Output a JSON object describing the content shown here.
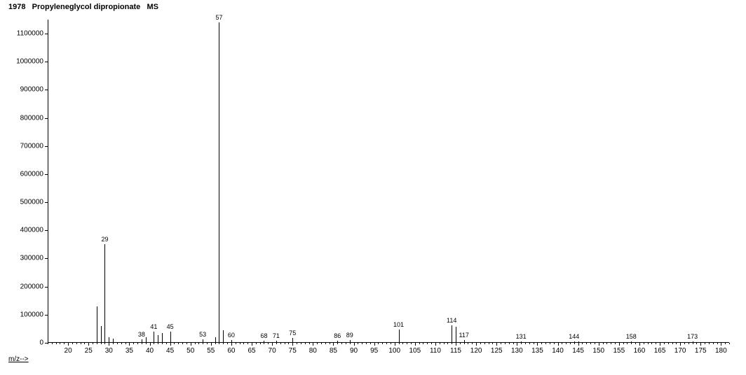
{
  "title": "1978   Propyleneglycol dipropionate   MS",
  "chart": {
    "type": "bar",
    "background_color": "#ffffff",
    "line_color": "#000000",
    "font_size_axis": 10,
    "font_size_peak": 9,
    "x": {
      "min": 15,
      "max": 182,
      "tick_start": 20,
      "tick_step": 5,
      "minor_step": 1,
      "title": "m/z-->"
    },
    "y": {
      "min": 0,
      "max": 1150000,
      "tick_start": 0,
      "tick_step": 100000
    },
    "peaks": [
      {
        "mz": 27,
        "intensity": 130000,
        "label": ""
      },
      {
        "mz": 28,
        "intensity": 60000,
        "label": ""
      },
      {
        "mz": 29,
        "intensity": 350000,
        "label": "29"
      },
      {
        "mz": 30,
        "intensity": 20000,
        "label": ""
      },
      {
        "mz": 31,
        "intensity": 15000,
        "label": ""
      },
      {
        "mz": 38,
        "intensity": 12000,
        "label": "38"
      },
      {
        "mz": 39,
        "intensity": 20000,
        "label": ""
      },
      {
        "mz": 41,
        "intensity": 40000,
        "label": "41"
      },
      {
        "mz": 42,
        "intensity": 28000,
        "label": ""
      },
      {
        "mz": 43,
        "intensity": 35000,
        "label": ""
      },
      {
        "mz": 45,
        "intensity": 40000,
        "label": "45"
      },
      {
        "mz": 53,
        "intensity": 12000,
        "label": "53"
      },
      {
        "mz": 56,
        "intensity": 20000,
        "label": ""
      },
      {
        "mz": 57,
        "intensity": 1140000,
        "label": "57"
      },
      {
        "mz": 58,
        "intensity": 45000,
        "label": ""
      },
      {
        "mz": 60,
        "intensity": 10000,
        "label": "60"
      },
      {
        "mz": 68,
        "intensity": 8000,
        "label": "68"
      },
      {
        "mz": 71,
        "intensity": 8000,
        "label": "71"
      },
      {
        "mz": 75,
        "intensity": 18000,
        "label": "75"
      },
      {
        "mz": 86,
        "intensity": 8000,
        "label": "86"
      },
      {
        "mz": 89,
        "intensity": 10000,
        "label": "89"
      },
      {
        "mz": 101,
        "intensity": 48000,
        "label": "101"
      },
      {
        "mz": 114,
        "intensity": 62000,
        "label": "114"
      },
      {
        "mz": 115,
        "intensity": 58000,
        "label": ""
      },
      {
        "mz": 117,
        "intensity": 10000,
        "label": "117"
      },
      {
        "mz": 131,
        "intensity": 6000,
        "label": "131"
      },
      {
        "mz": 144,
        "intensity": 6000,
        "label": "144"
      },
      {
        "mz": 145,
        "intensity": 4000,
        "label": ""
      },
      {
        "mz": 158,
        "intensity": 4000,
        "label": "158"
      },
      {
        "mz": 173,
        "intensity": 4000,
        "label": "173"
      }
    ]
  }
}
